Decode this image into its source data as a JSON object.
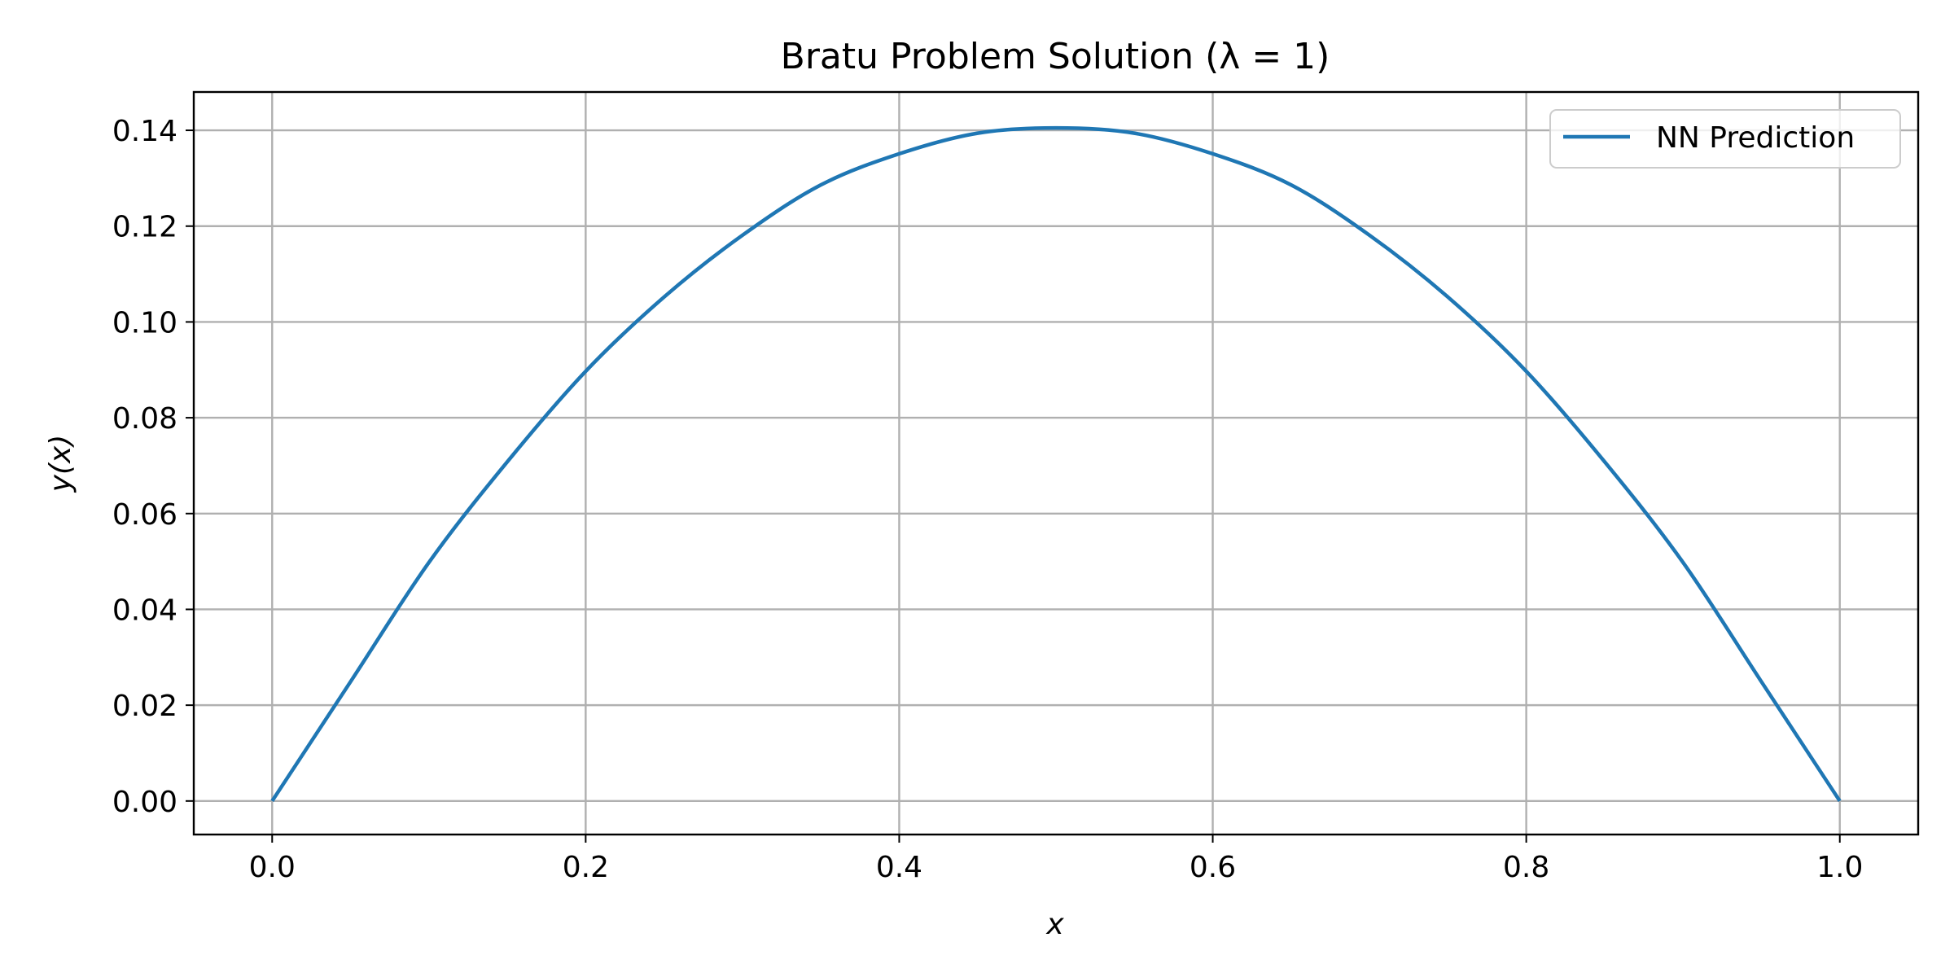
{
  "chart_data": {
    "type": "line",
    "title": "Bratu Problem Solution (λ = 1)",
    "xlabel": "x",
    "ylabel": "y(x)",
    "xlim": [
      -0.05,
      1.05
    ],
    "ylim": [
      -0.007,
      0.148
    ],
    "x_ticks": [
      0.0,
      0.2,
      0.4,
      0.6,
      0.8,
      1.0
    ],
    "x_tick_labels": [
      "0.0",
      "0.2",
      "0.4",
      "0.6",
      "0.8",
      "1.0"
    ],
    "y_ticks": [
      0.0,
      0.02,
      0.04,
      0.06,
      0.08,
      0.1,
      0.12,
      0.14
    ],
    "y_tick_labels": [
      "0.00",
      "0.02",
      "0.04",
      "0.06",
      "0.08",
      "0.10",
      "0.12",
      "0.14"
    ],
    "grid": true,
    "legend": "top-right",
    "series": [
      {
        "name": "NN Prediction",
        "color": "#1f77b4",
        "x": [
          0.0,
          0.05,
          0.1,
          0.15,
          0.2,
          0.25,
          0.3,
          0.35,
          0.4,
          0.45,
          0.5,
          0.55,
          0.6,
          0.65,
          0.7,
          0.75,
          0.8,
          0.85,
          0.9,
          0.95,
          1.0
        ],
        "y": [
          0.0,
          0.0249,
          0.0498,
          0.0708,
          0.0897,
          0.1052,
          0.1181,
          0.1286,
          0.1351,
          0.1394,
          0.1405,
          0.1394,
          0.1351,
          0.1286,
          0.1181,
          0.1052,
          0.0897,
          0.0708,
          0.0498,
          0.0249,
          0.0
        ]
      }
    ]
  }
}
